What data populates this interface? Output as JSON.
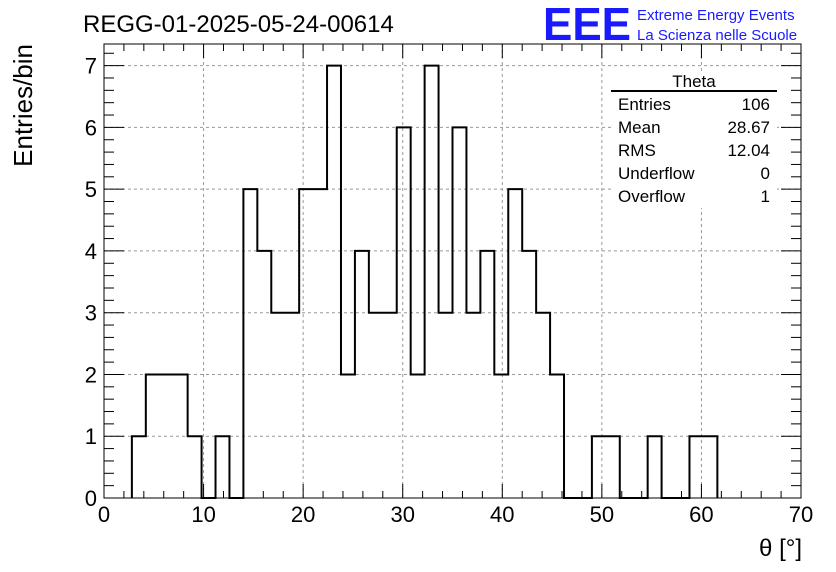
{
  "chart_data": {
    "type": "bar",
    "title": "REGG-01-2025-05-24-00614",
    "xlabel": "θ [°]",
    "ylabel": "Entries/bin",
    "xlim": [
      0,
      70
    ],
    "ylim": [
      0,
      7.35
    ],
    "x_ticks": [
      0,
      10,
      20,
      30,
      40,
      50,
      60,
      70
    ],
    "y_ticks": [
      0,
      1,
      2,
      3,
      4,
      5,
      6,
      7
    ],
    "grid": true,
    "bin_width": 1.4,
    "bin_edges_start": 2.8,
    "values": [
      1,
      2,
      2,
      2,
      1,
      0,
      1,
      0,
      5,
      4,
      3,
      3,
      5,
      5,
      7,
      2,
      4,
      3,
      3,
      6,
      2,
      7,
      3,
      6,
      3,
      4,
      2,
      5,
      4,
      3,
      2,
      0,
      0,
      1,
      1,
      0,
      0,
      1,
      0,
      0,
      1,
      1
    ],
    "logo": {
      "mark": "EEE",
      "line1": "Extreme Energy Events",
      "line2": "La Scienza nelle Scuole",
      "color": "#1a1aff"
    },
    "stats": {
      "title": "Theta",
      "rows": [
        {
          "label": "Entries",
          "value": "106"
        },
        {
          "label": "Mean",
          "value": "28.67"
        },
        {
          "label": "RMS",
          "value": "12.04"
        },
        {
          "label": "Underflow",
          "value": "0"
        },
        {
          "label": "Overflow",
          "value": "1"
        }
      ]
    }
  }
}
